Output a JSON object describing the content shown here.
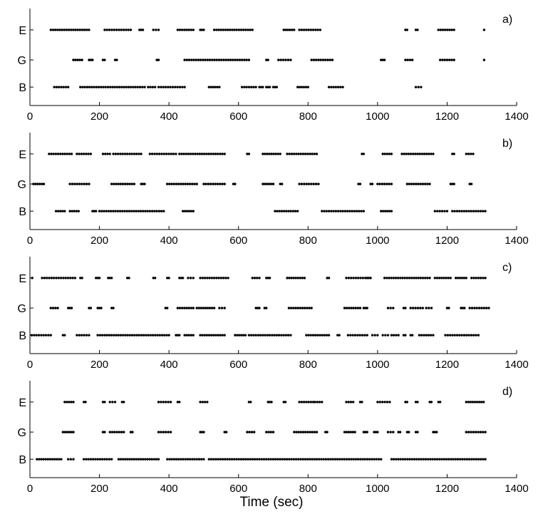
{
  "chart_data": [
    {
      "type": "scatter",
      "panel_label": "a)",
      "categories": [
        "E",
        "G",
        "B"
      ],
      "xlim": [
        0,
        1400
      ],
      "xticks": [
        0,
        200,
        400,
        600,
        800,
        1000,
        1200,
        1400
      ],
      "xlabel": "",
      "series": [
        {
          "category": "E",
          "spans": [
            [
              60,
              170
            ],
            [
              215,
              290
            ],
            [
              315,
              325
            ],
            [
              355,
              370
            ],
            [
              425,
              470
            ],
            [
              490,
              500
            ],
            [
              530,
              640
            ],
            [
              730,
              760
            ],
            [
              775,
              835
            ],
            [
              1080,
              1085
            ],
            [
              1110,
              1115
            ],
            [
              1175,
              1220
            ],
            [
              1305,
              1308
            ]
          ]
        },
        {
          "category": "G",
          "spans": [
            [
              125,
              150
            ],
            [
              170,
              180
            ],
            [
              210,
              215
            ],
            [
              245,
              250
            ],
            [
              365,
              370
            ],
            [
              445,
              630
            ],
            [
              680,
              685
            ],
            [
              715,
              750
            ],
            [
              810,
              870
            ],
            [
              1010,
              1020
            ],
            [
              1080,
              1100
            ],
            [
              1180,
              1220
            ],
            [
              1305,
              1308
            ]
          ]
        },
        {
          "category": "B",
          "spans": [
            [
              70,
              110
            ],
            [
              145,
              330
            ],
            [
              340,
              360
            ],
            [
              370,
              445
            ],
            [
              515,
              545
            ],
            [
              610,
              650
            ],
            [
              660,
              670
            ],
            [
              680,
              690
            ],
            [
              700,
              710
            ],
            [
              770,
              800
            ],
            [
              860,
              900
            ],
            [
              1110,
              1125
            ]
          ]
        }
      ]
    },
    {
      "type": "scatter",
      "panel_label": "b)",
      "categories": [
        "E",
        "G",
        "B"
      ],
      "xlim": [
        0,
        1400
      ],
      "xticks": [
        0,
        200,
        400,
        600,
        800,
        1000,
        1200,
        1400
      ],
      "xlabel": "",
      "series": [
        {
          "category": "E",
          "spans": [
            [
              55,
              120
            ],
            [
              135,
              175
            ],
            [
              210,
              230
            ],
            [
              240,
              320
            ],
            [
              345,
              420
            ],
            [
              430,
              560
            ],
            [
              625,
              630
            ],
            [
              670,
              720
            ],
            [
              740,
              825
            ],
            [
              955,
              960
            ],
            [
              1015,
              1040
            ],
            [
              1070,
              1160
            ],
            [
              1215,
              1220
            ],
            [
              1255,
              1275
            ]
          ]
        },
        {
          "category": "G",
          "spans": [
            [
              10,
              40
            ],
            [
              115,
              170
            ],
            [
              235,
              300
            ],
            [
              320,
              330
            ],
            [
              395,
              480
            ],
            [
              500,
              560
            ],
            [
              585,
              590
            ],
            [
              670,
              700
            ],
            [
              720,
              725
            ],
            [
              775,
              830
            ],
            [
              945,
              950
            ],
            [
              980,
              985
            ],
            [
              1000,
              1040
            ],
            [
              1085,
              1150
            ],
            [
              1210,
              1220
            ],
            [
              1265,
              1270
            ]
          ]
        },
        {
          "category": "B",
          "spans": [
            [
              75,
              100
            ],
            [
              115,
              140
            ],
            [
              180,
              190
            ],
            [
              200,
              385
            ],
            [
              440,
              470
            ],
            [
              705,
              770
            ],
            [
              840,
              960
            ],
            [
              1010,
              1040
            ],
            [
              1165,
              1200
            ],
            [
              1215,
              1310
            ]
          ]
        }
      ]
    },
    {
      "type": "scatter",
      "panel_label": "c)",
      "categories": [
        "E",
        "G",
        "B"
      ],
      "xlim": [
        0,
        1400
      ],
      "xticks": [
        0,
        200,
        400,
        600,
        800,
        1000,
        1200,
        1400
      ],
      "xlabel": "",
      "series": [
        {
          "category": "E",
          "spans": [
            [
              5,
              8
            ],
            [
              35,
              130
            ],
            [
              145,
              150
            ],
            [
              190,
              200
            ],
            [
              225,
              235
            ],
            [
              280,
              285
            ],
            [
              355,
              360
            ],
            [
              395,
              400
            ],
            [
              430,
              440
            ],
            [
              455,
              470
            ],
            [
              490,
              570
            ],
            [
              640,
              660
            ],
            [
              680,
              690
            ],
            [
              740,
              790
            ],
            [
              855,
              860
            ],
            [
              910,
              965
            ],
            [
              970,
              980
            ],
            [
              1020,
              1150
            ],
            [
              1165,
              1210
            ],
            [
              1225,
              1255
            ],
            [
              1270,
              1310
            ]
          ]
        },
        {
          "category": "G",
          "spans": [
            [
              60,
              80
            ],
            [
              110,
              120
            ],
            [
              170,
              175
            ],
            [
              195,
              205
            ],
            [
              235,
              240
            ],
            [
              390,
              395
            ],
            [
              425,
              470
            ],
            [
              480,
              530
            ],
            [
              545,
              560
            ],
            [
              650,
              660
            ],
            [
              675,
              680
            ],
            [
              745,
              810
            ],
            [
              905,
              950
            ],
            [
              960,
              970
            ],
            [
              1030,
              1045
            ],
            [
              1075,
              1080
            ],
            [
              1095,
              1130
            ],
            [
              1140,
              1155
            ],
            [
              1200,
              1205
            ],
            [
              1240,
              1250
            ],
            [
              1265,
              1320
            ]
          ]
        },
        {
          "category": "B",
          "spans": [
            [
              5,
              60
            ],
            [
              95,
              100
            ],
            [
              135,
              170
            ],
            [
              195,
              400
            ],
            [
              420,
              430
            ],
            [
              445,
              470
            ],
            [
              490,
              560
            ],
            [
              590,
              620
            ],
            [
              630,
              750
            ],
            [
              795,
              860
            ],
            [
              885,
              890
            ],
            [
              915,
              970
            ],
            [
              985,
              1000
            ],
            [
              1015,
              1030
            ],
            [
              1040,
              1060
            ],
            [
              1075,
              1080
            ],
            [
              1095,
              1100
            ],
            [
              1120,
              1160
            ],
            [
              1195,
              1290
            ]
          ]
        }
      ]
    },
    {
      "type": "scatter",
      "panel_label": "d)",
      "categories": [
        "E",
        "G",
        "B"
      ],
      "xlim": [
        0,
        1400
      ],
      "xticks": [
        0,
        200,
        400,
        600,
        800,
        1000,
        1200,
        1400
      ],
      "xlabel": "Time (sec)",
      "series": [
        {
          "category": "E",
          "spans": [
            [
              100,
              125
            ],
            [
              155,
              160
            ],
            [
              210,
              215
            ],
            [
              230,
              245
            ],
            [
              265,
              270
            ],
            [
              370,
              405
            ],
            [
              425,
              430
            ],
            [
              490,
              510
            ],
            [
              630,
              635
            ],
            [
              685,
              695
            ],
            [
              730,
              735
            ],
            [
              775,
              815
            ],
            [
              820,
              840
            ],
            [
              910,
              930
            ],
            [
              950,
              955
            ],
            [
              1000,
              1035
            ],
            [
              1080,
              1085
            ],
            [
              1110,
              1115
            ],
            [
              1150,
              1155
            ],
            [
              1175,
              1180
            ],
            [
              1255,
              1305
            ]
          ]
        },
        {
          "category": "G",
          "spans": [
            [
              95,
              125
            ],
            [
              210,
              215
            ],
            [
              230,
              270
            ],
            [
              290,
              295
            ],
            [
              370,
              405
            ],
            [
              490,
              500
            ],
            [
              560,
              565
            ],
            [
              625,
              645
            ],
            [
              680,
              700
            ],
            [
              760,
              825
            ],
            [
              850,
              855
            ],
            [
              905,
              935
            ],
            [
              960,
              970
            ],
            [
              990,
              1000
            ],
            [
              1030,
              1045
            ],
            [
              1060,
              1065
            ],
            [
              1085,
              1090
            ],
            [
              1110,
              1115
            ],
            [
              1160,
              1170
            ],
            [
              1255,
              1310
            ]
          ]
        },
        {
          "category": "B",
          "spans": [
            [
              20,
              90
            ],
            [
              110,
              125
            ],
            [
              155,
              235
            ],
            [
              255,
              370
            ],
            [
              395,
              500
            ],
            [
              515,
              1010
            ],
            [
              1040,
              1310
            ]
          ]
        }
      ]
    }
  ]
}
